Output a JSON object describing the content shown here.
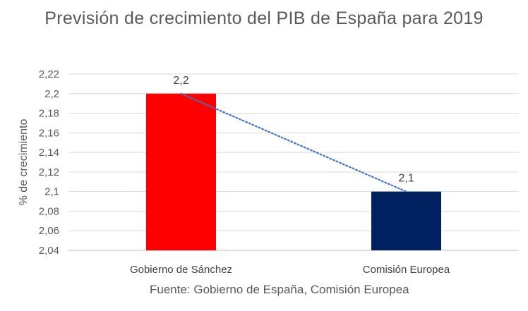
{
  "chart_data": {
    "type": "bar",
    "title": "Previsión de crecimiento del PIB de España para 2019",
    "ylabel": "% de crecimiento",
    "xlabel": "",
    "categories": [
      "Gobierno de Sánchez",
      "Comisión Europea"
    ],
    "series": [
      {
        "values": [
          2.2,
          2.1
        ],
        "colors": [
          "#ff0000",
          "#002060"
        ],
        "data_labels": [
          "2,2",
          "2,1"
        ]
      }
    ],
    "trendline": {
      "style": "dotted",
      "color": "#4472c4"
    },
    "ylim": [
      2.04,
      2.22
    ],
    "yticks": [
      2.04,
      2.06,
      2.08,
      2.1,
      2.12,
      2.14,
      2.16,
      2.18,
      2.2,
      2.22
    ],
    "ytick_labels": [
      "2,04",
      "2,06",
      "2,08",
      "2,1",
      "2,12",
      "2,14",
      "2,16",
      "2,18",
      "2,2",
      "2,22"
    ],
    "grid": true,
    "legend": "none",
    "source": "Fuente: Gobierno de España, Comisión Europea"
  }
}
